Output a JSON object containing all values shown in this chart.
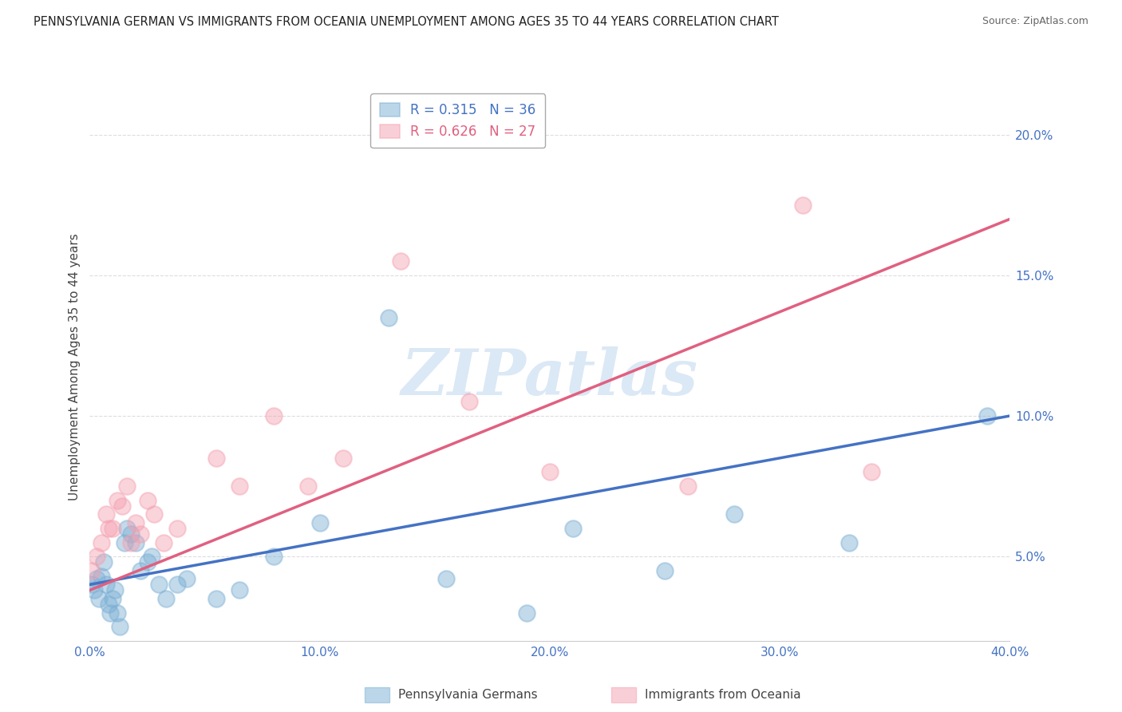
{
  "title": "PENNSYLVANIA GERMAN VS IMMIGRANTS FROM OCEANIA UNEMPLOYMENT AMONG AGES 35 TO 44 YEARS CORRELATION CHART",
  "source": "Source: ZipAtlas.com",
  "ylabel": "Unemployment Among Ages 35 to 44 years",
  "xlim": [
    0.0,
    0.4
  ],
  "ylim": [
    0.02,
    0.215
  ],
  "xticks": [
    0.0,
    0.1,
    0.2,
    0.3,
    0.4
  ],
  "xticklabels": [
    "0.0%",
    "10.0%",
    "20.0%",
    "30.0%",
    "40.0%"
  ],
  "yticks_right": [
    0.05,
    0.1,
    0.15,
    0.2
  ],
  "ytick_labels_right": [
    "5.0%",
    "10.0%",
    "15.0%",
    "20.0%"
  ],
  "blue_color": "#7BAFD4",
  "pink_color": "#F4A0B0",
  "blue_line_color": "#4472C4",
  "pink_line_color": "#E06080",
  "legend_R_blue": "R = 0.315",
  "legend_N_blue": "N = 36",
  "legend_R_pink": "R = 0.626",
  "legend_N_pink": "N = 27",
  "watermark": "ZIPatlas",
  "watermark_color": "#C8DCF0",
  "background_color": "#FFFFFF",
  "grid_color": "#DDDDDD",
  "blue_x": [
    0.001,
    0.002,
    0.003,
    0.004,
    0.005,
    0.006,
    0.007,
    0.008,
    0.009,
    0.01,
    0.011,
    0.012,
    0.013,
    0.015,
    0.016,
    0.018,
    0.02,
    0.022,
    0.025,
    0.027,
    0.03,
    0.033,
    0.038,
    0.042,
    0.055,
    0.065,
    0.08,
    0.1,
    0.13,
    0.155,
    0.19,
    0.21,
    0.25,
    0.28,
    0.33,
    0.39
  ],
  "blue_y": [
    0.04,
    0.038,
    0.042,
    0.035,
    0.043,
    0.048,
    0.04,
    0.033,
    0.03,
    0.035,
    0.038,
    0.03,
    0.025,
    0.055,
    0.06,
    0.058,
    0.055,
    0.045,
    0.048,
    0.05,
    0.04,
    0.035,
    0.04,
    0.042,
    0.035,
    0.038,
    0.05,
    0.062,
    0.135,
    0.042,
    0.03,
    0.06,
    0.045,
    0.065,
    0.055,
    0.1
  ],
  "pink_x": [
    0.001,
    0.003,
    0.005,
    0.007,
    0.008,
    0.01,
    0.012,
    0.014,
    0.016,
    0.018,
    0.02,
    0.022,
    0.025,
    0.028,
    0.032,
    0.038,
    0.055,
    0.065,
    0.08,
    0.095,
    0.11,
    0.135,
    0.165,
    0.2,
    0.26,
    0.31,
    0.34
  ],
  "pink_y": [
    0.045,
    0.05,
    0.055,
    0.065,
    0.06,
    0.06,
    0.07,
    0.068,
    0.075,
    0.055,
    0.062,
    0.058,
    0.07,
    0.065,
    0.055,
    0.06,
    0.085,
    0.075,
    0.1,
    0.075,
    0.085,
    0.155,
    0.105,
    0.08,
    0.075,
    0.175,
    0.08
  ],
  "blue_line_x0": 0.0,
  "blue_line_y0": 0.04,
  "blue_line_x1": 0.4,
  "blue_line_y1": 0.1,
  "pink_line_x0": 0.0,
  "pink_line_y0": 0.038,
  "pink_line_x1": 0.4,
  "pink_line_y1": 0.17
}
